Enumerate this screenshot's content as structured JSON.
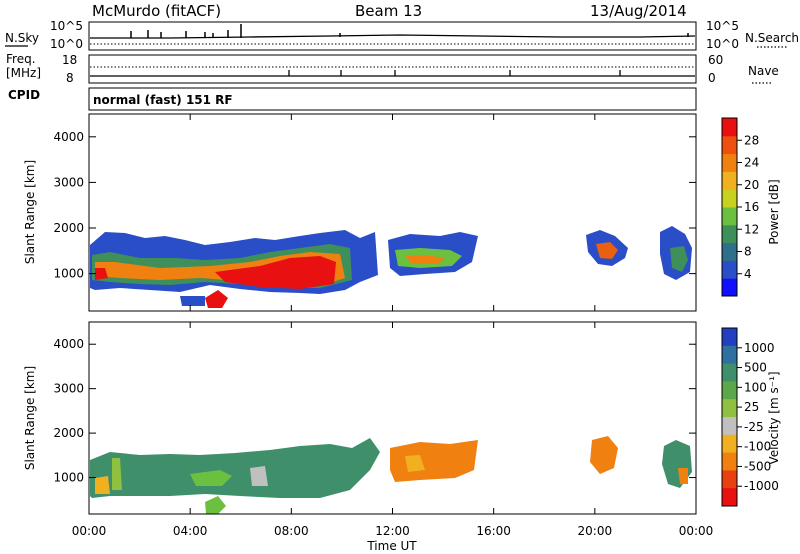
{
  "header": {
    "station": "McMurdo (fitACF)",
    "beam": "Beam 13",
    "date": "13/Aug/2014"
  },
  "params_panel": {
    "nsky_label": "N.Sky",
    "nsearch_label": "N.Search",
    "nsky_ticks": [
      "10^5",
      "10^0"
    ],
    "nsearch_ticks": [
      "10^5",
      "10^0"
    ],
    "freq_label_line1": "Freq.",
    "freq_label_line2": "[MHz]",
    "freq_ticks": [
      "18",
      "8"
    ],
    "nave_label": "Nave",
    "nave_ticks": [
      "60",
      "0"
    ],
    "cpid_label": "CPID",
    "cpid_text": "normal (fast) 151 RF"
  },
  "chart_data": [
    {
      "type": "heatmap",
      "name": "power",
      "ylabel": "Slant Range [km]",
      "ylim": [
        180,
        4500
      ],
      "yticks": [
        "1000",
        "2000",
        "3000",
        "4000"
      ],
      "colorbar_label": "Power [dB]",
      "colorbar_ticks": [
        "4",
        "8",
        "12",
        "16",
        "20",
        "24",
        "28"
      ],
      "colorbar_colors": [
        "#1010ff",
        "#2a4dc8",
        "#2f6f8a",
        "#3f8f5a",
        "#6cc040",
        "#c8d020",
        "#f0b020",
        "#f08010",
        "#ee5010",
        "#e81010"
      ]
    },
    {
      "type": "heatmap",
      "name": "velocity",
      "ylabel": "Slant Range [km]",
      "ylim": [
        180,
        4500
      ],
      "yticks": [
        "1000",
        "2000",
        "3000",
        "4000"
      ],
      "colorbar_label": "Velocity [m s⁻¹]",
      "colorbar_ticks": [
        "1000",
        "500",
        "100",
        "25",
        "-25",
        "-100",
        "-500",
        "-1000"
      ],
      "colorbar_colors": [
        "#2040c0",
        "#3070a0",
        "#3f8f6a",
        "#5aa84a",
        "#90c040",
        "#c0c0c0",
        "#f0b020",
        "#f08010",
        "#e84010",
        "#e81010"
      ]
    }
  ],
  "time_axis": {
    "ticks": [
      "00:00",
      "04:00",
      "08:00",
      "12:00",
      "16:00",
      "20:00",
      "00:00"
    ],
    "label": "Time UT"
  }
}
